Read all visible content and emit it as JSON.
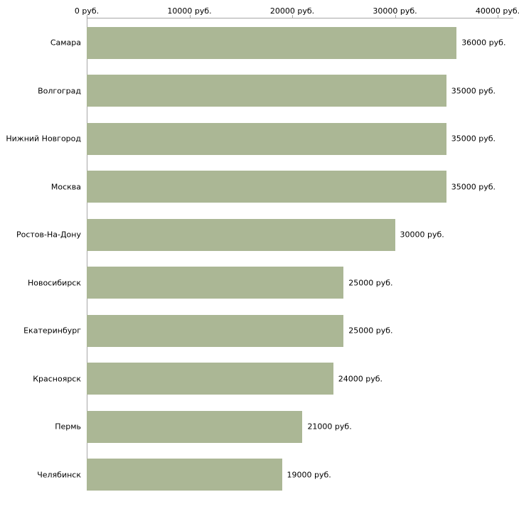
{
  "chart_data": {
    "type": "bar",
    "orientation": "horizontal",
    "title": "",
    "xlabel": "",
    "ylabel": "",
    "xlim": [
      0,
      40000
    ],
    "grid": false,
    "legend": false,
    "x_tick_values": [
      0,
      10000,
      20000,
      30000,
      40000
    ],
    "x_tick_labels": [
      "0 руб.",
      "10000 руб.",
      "20000 руб.",
      "30000 руб.",
      "40000 руб."
    ],
    "categories": [
      "Самара",
      "Волгоград",
      "Нижний Новгород",
      "Москва",
      "Ростов-На-Дону",
      "Новосибирск",
      "Екатеринбург",
      "Красноярск",
      "Пермь",
      "Челябинск"
    ],
    "values": [
      36000,
      35000,
      35000,
      35000,
      30000,
      25000,
      25000,
      24000,
      21000,
      19000
    ],
    "value_labels": [
      "36000 руб.",
      "35000 руб.",
      "35000 руб.",
      "35000 руб.",
      "30000 руб.",
      "25000 руб.",
      "25000 руб.",
      "24000 руб.",
      "21000 руб.",
      "19000 руб."
    ],
    "unit": "руб.",
    "bar_color": "#abb795",
    "axis_color": "#a6a6a6",
    "text_color": "#000000"
  }
}
